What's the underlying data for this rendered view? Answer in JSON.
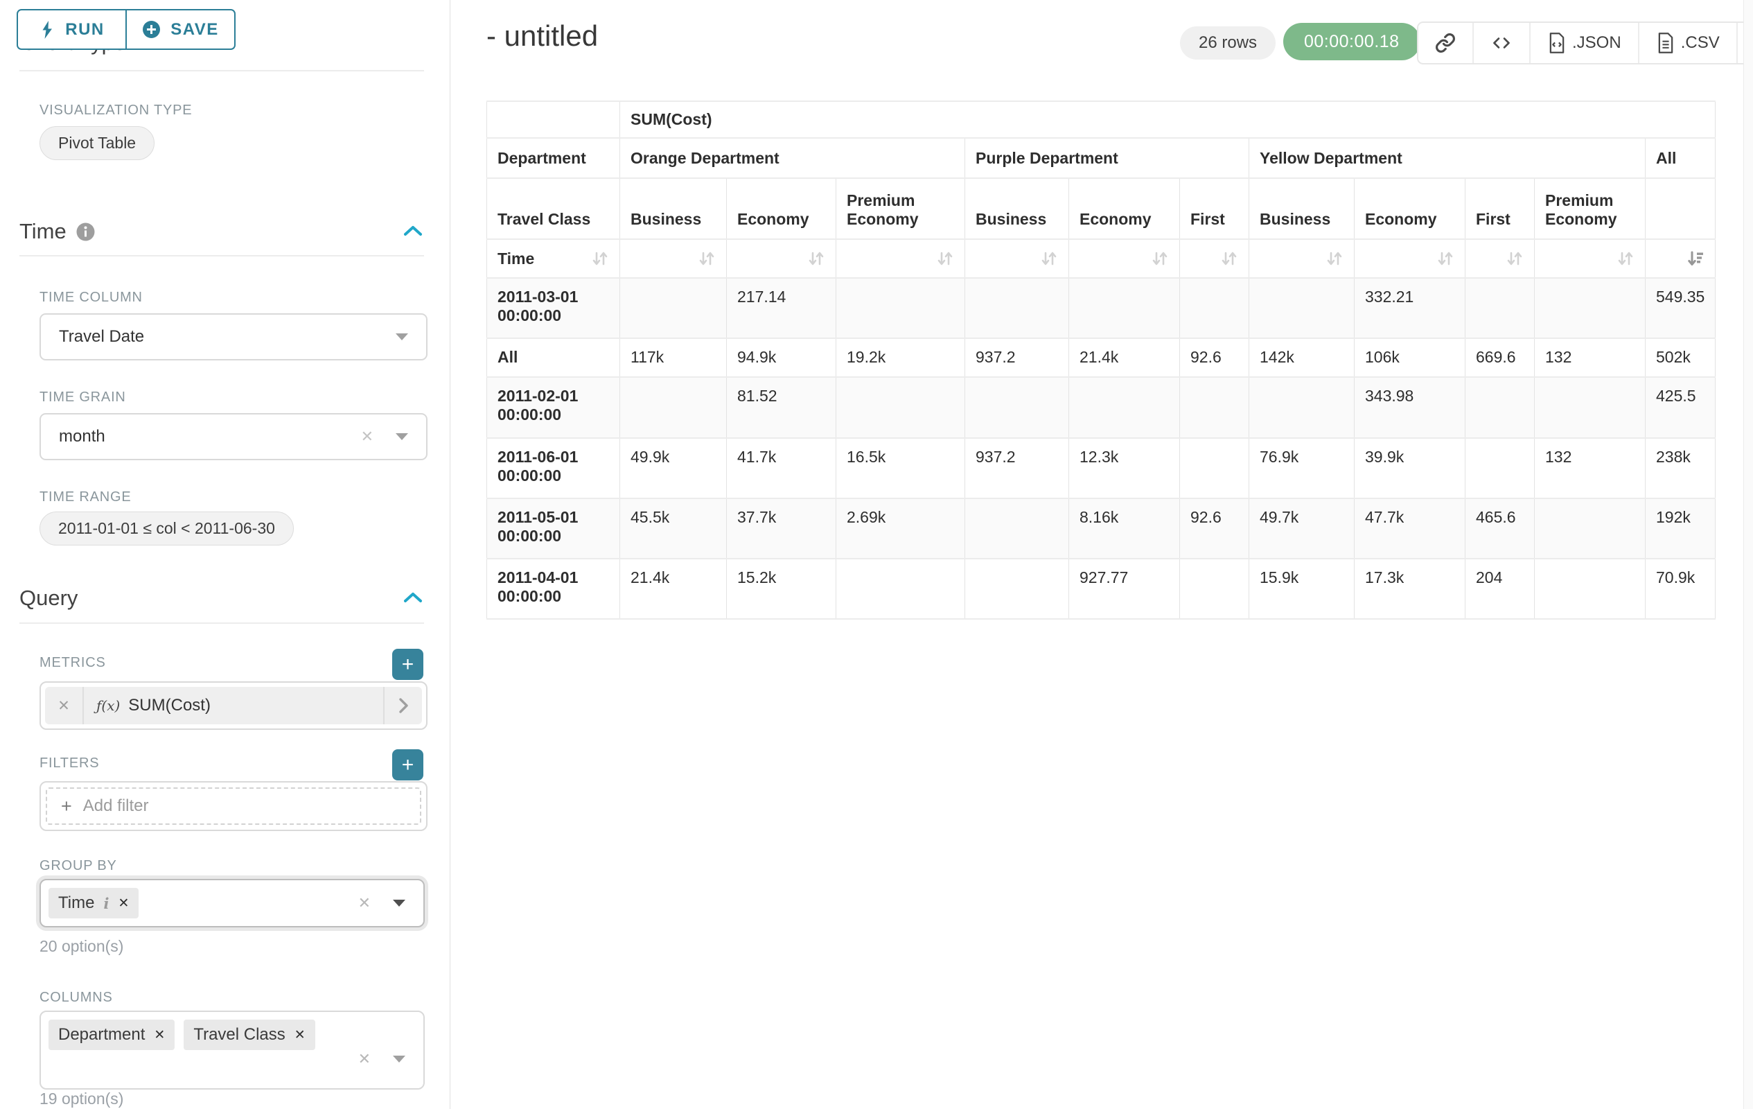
{
  "sidebar": {
    "run_button": {
      "label": "RUN"
    },
    "save_button": {
      "label": "SAVE"
    },
    "chart_type_title": "Chart Type",
    "visualization_type": {
      "label": "VISUALIZATION TYPE",
      "value": "Pivot Table"
    },
    "time": {
      "title": "Time",
      "time_column": {
        "label": "TIME COLUMN",
        "value": "Travel Date"
      },
      "time_grain": {
        "label": "TIME GRAIN",
        "value": "month"
      },
      "time_range": {
        "label": "TIME RANGE",
        "value": "2011-01-01 ≤ col < 2011-06-30"
      }
    },
    "query": {
      "title": "Query",
      "metrics": {
        "label": "METRICS",
        "fx": "ƒ(x)",
        "metric": "SUM(Cost)"
      },
      "filters": {
        "label": "FILTERS",
        "placeholder": "Add filter"
      },
      "group_by": {
        "label": "GROUP BY",
        "tags": [
          "Time"
        ],
        "options_hint": "20 option(s)"
      },
      "columns": {
        "label": "COLUMNS",
        "tags": [
          "Department",
          "Travel Class"
        ],
        "options_hint": "19 option(s)"
      }
    }
  },
  "header": {
    "title": "- untitled",
    "row_count": "26 rows",
    "timer": "00:00:00.18",
    "toolbar": {
      "json_label": ".JSON",
      "csv_label": ".CSV"
    }
  },
  "glyphs": {
    "close": "✕",
    "clear": "✕",
    "plus": "+",
    "info_i": "i"
  },
  "colors": {
    "accent_teal": "#2b7e97",
    "bright_teal": "#20a7c9",
    "plus_teal": "#37839b",
    "timer_green": "#7eb98a",
    "label_gray": "#8a969c"
  },
  "table": {
    "metric_header": "SUM(Cost)",
    "corner_department": "Department",
    "corner_travel_class": "Travel Class",
    "corner_time": "Time",
    "all_label": "All",
    "groups": [
      {
        "label": "Orange Department",
        "span": 3
      },
      {
        "label": "Purple Department",
        "span": 3
      },
      {
        "label": "Yellow Department",
        "span": 4
      }
    ],
    "classes": [
      "Business",
      "Economy",
      "Premium Economy",
      "Business",
      "Economy",
      "First",
      "Business",
      "Economy",
      "First",
      "Premium Economy"
    ],
    "rows": [
      {
        "label": "2011-03-01 00:00:00",
        "values": [
          "",
          "217.14",
          "",
          "",
          "",
          "",
          "",
          "332.21",
          "",
          "",
          "549.35"
        ]
      },
      {
        "label": "All",
        "values": [
          "117k",
          "94.9k",
          "19.2k",
          "937.2",
          "21.4k",
          "92.6",
          "142k",
          "106k",
          "669.6",
          "132",
          "502k"
        ]
      },
      {
        "label": "2011-02-01 00:00:00",
        "values": [
          "",
          "81.52",
          "",
          "",
          "",
          "",
          "",
          "343.98",
          "",
          "",
          "425.5"
        ]
      },
      {
        "label": "2011-06-01 00:00:00",
        "values": [
          "49.9k",
          "41.7k",
          "16.5k",
          "937.2",
          "12.3k",
          "",
          "76.9k",
          "39.9k",
          "",
          "132",
          "238k"
        ]
      },
      {
        "label": "2011-05-01 00:00:00",
        "values": [
          "45.5k",
          "37.7k",
          "2.69k",
          "",
          "8.16k",
          "92.6",
          "49.7k",
          "47.7k",
          "465.6",
          "",
          "192k"
        ]
      },
      {
        "label": "2011-04-01 00:00:00",
        "values": [
          "21.4k",
          "15.2k",
          "",
          "",
          "927.77",
          "",
          "15.9k",
          "17.3k",
          "204",
          "",
          "70.9k"
        ]
      }
    ]
  }
}
